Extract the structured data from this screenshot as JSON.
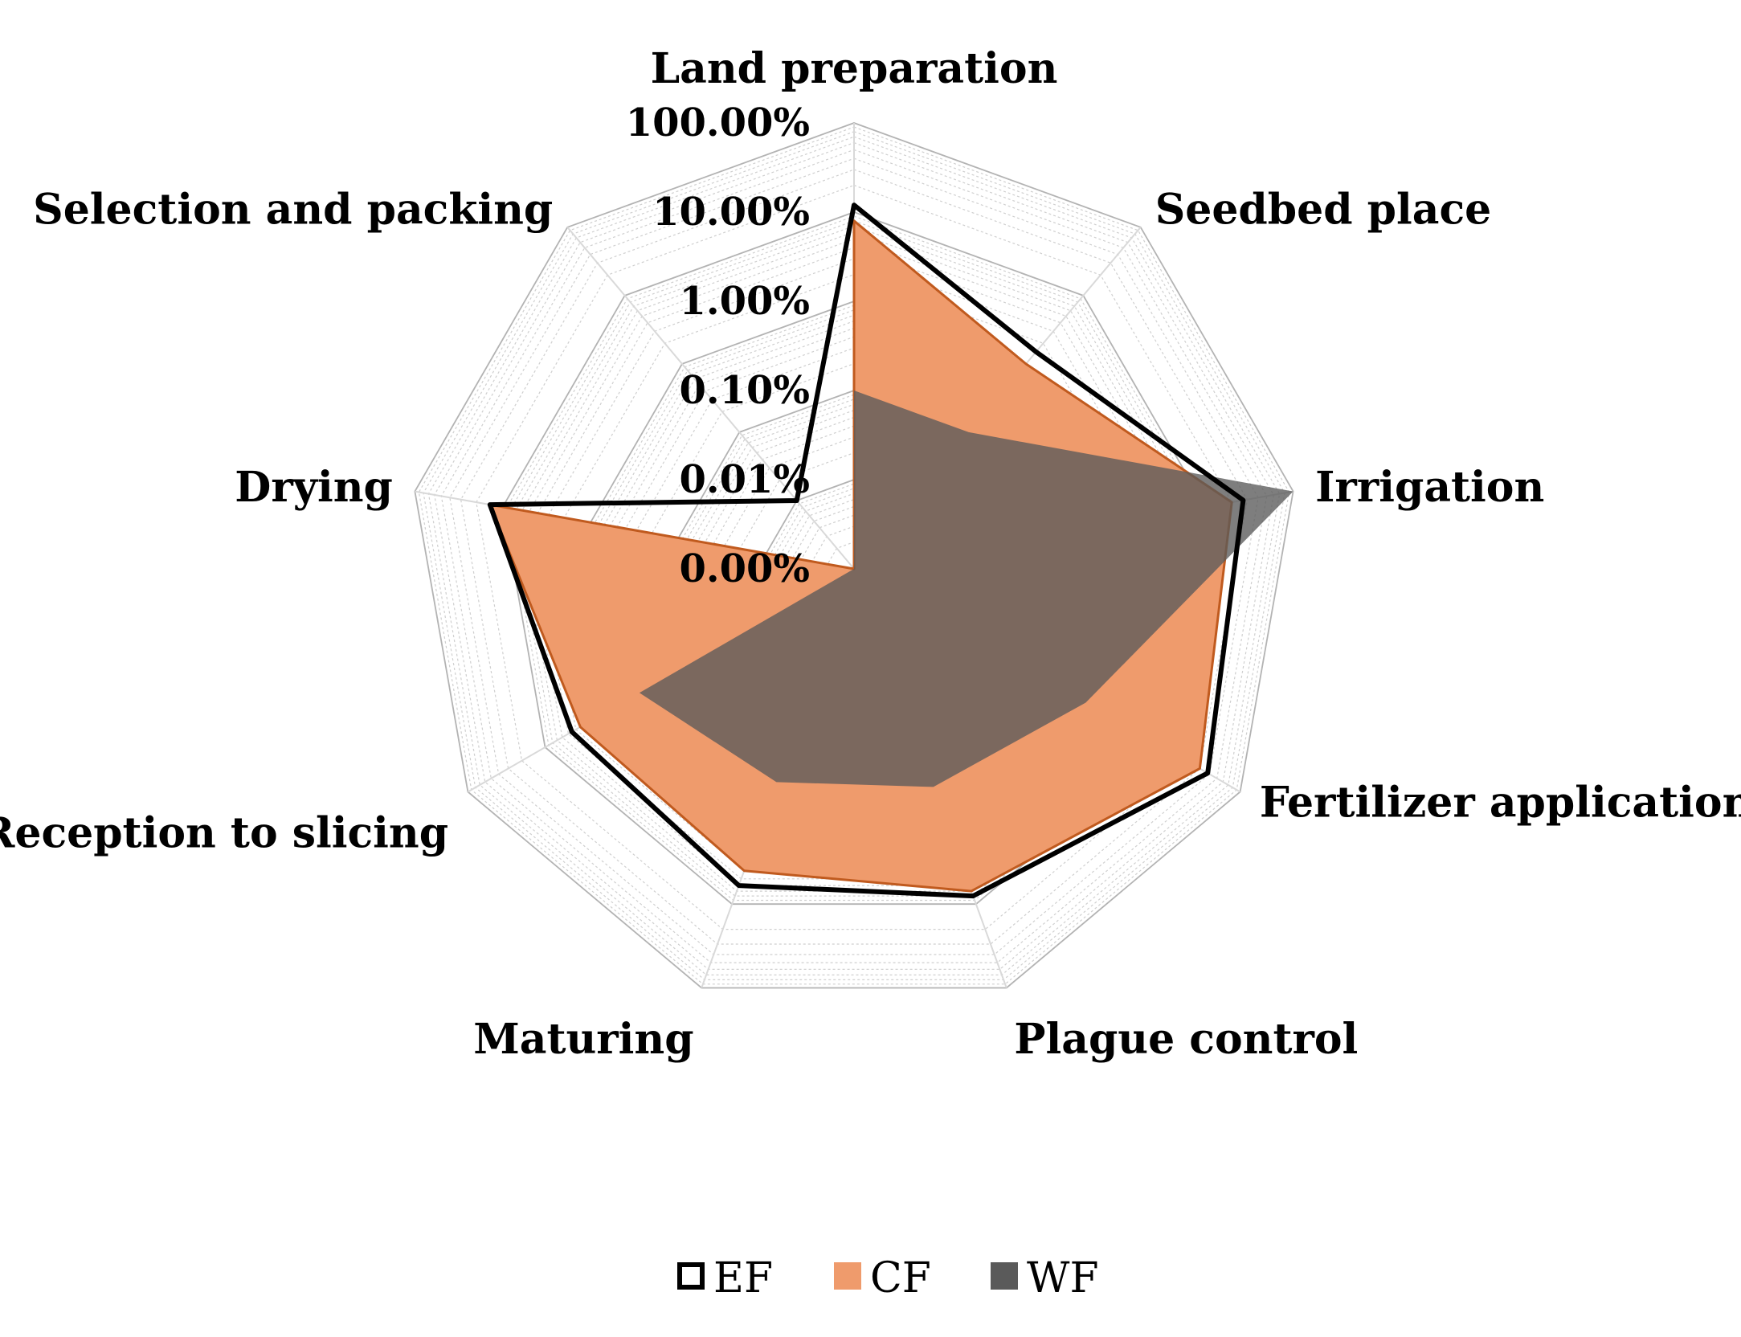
{
  "chart_data": {
    "type": "radar",
    "scale": "log",
    "categories": [
      "Land preparation",
      "Seedbed place",
      "Irrigation",
      "Fertilizer application",
      "Plague control",
      "Maturing",
      "Reception to slicing",
      "Drying",
      "Selection and packing"
    ],
    "axis_ticks": [
      "0.00%",
      "0.01%",
      "0.10%",
      "1.00%",
      "10.00%",
      "100.00%"
    ],
    "axis_range_percent": [
      0.001,
      100
    ],
    "series": [
      {
        "name": "EF",
        "style": "outline",
        "color": "#000000",
        "values_percent": [
          12,
          1.5,
          27,
          38,
          8,
          6,
          4.5,
          14,
          0.01
        ]
      },
      {
        "name": "CF",
        "style": "fill",
        "color": "#ef9b6c",
        "values_percent": [
          8,
          1.0,
          20,
          30,
          7,
          4,
          3.5,
          14,
          0.001
        ]
      },
      {
        "name": "WF",
        "style": "fill",
        "color": "#5a5a5a",
        "values_percent": [
          0.1,
          0.1,
          100,
          1.0,
          0.4,
          0.35,
          0.6,
          0.001,
          0.001
        ]
      }
    ],
    "grid": true,
    "legend_position": "bottom"
  },
  "colors": {
    "grid": "#b3b3b3",
    "cf_border": "#c05a1e",
    "wf_fill": "#5a5a5a"
  }
}
